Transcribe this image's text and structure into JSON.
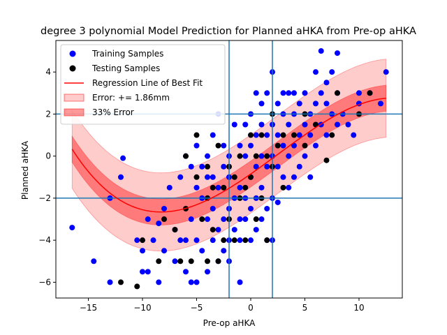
{
  "chart_data": {
    "type": "scatter",
    "title": "degree 3 polynomial Model Prediction for Planned aHKA from Pre-op aHKA",
    "xlabel": "Pre-op aHKA",
    "ylabel": "Planned aHKA",
    "xlim": [
      -18,
      14
    ],
    "ylim": [
      -6.75,
      5.5
    ],
    "xticks": [
      -15,
      -10,
      -5,
      0,
      5,
      10
    ],
    "yticks": [
      -6,
      -4,
      -2,
      0,
      2,
      4
    ],
    "grid": false,
    "legend_position": "top-left",
    "reference_lines": {
      "vertical": [
        -2,
        2
      ],
      "horizontal": [
        -2,
        2
      ],
      "color": "#1f77b4"
    },
    "series": [
      {
        "name": "Training Samples",
        "kind": "scatter",
        "color": "#0000ff",
        "points": [
          [
            -16.5,
            -3.4
          ],
          [
            -14.5,
            -5
          ],
          [
            -13,
            -6
          ],
          [
            -13,
            -2
          ],
          [
            -12,
            -1
          ],
          [
            -11.8,
            -0.1
          ],
          [
            -10.5,
            -4
          ],
          [
            -10,
            -4.5
          ],
          [
            -10,
            -5.5
          ],
          [
            -9.5,
            -5.5
          ],
          [
            -9.5,
            -3
          ],
          [
            -9,
            -4
          ],
          [
            -8.5,
            -6
          ],
          [
            -8.5,
            -3.2
          ],
          [
            -8,
            -2.5
          ],
          [
            -8,
            -4.5
          ],
          [
            -7.5,
            -1.5
          ],
          [
            -7,
            -5
          ],
          [
            -7,
            -3.5
          ],
          [
            -6.5,
            -4
          ],
          [
            -6.5,
            -1
          ],
          [
            -6,
            -5.5
          ],
          [
            -6,
            -4
          ],
          [
            -6,
            0
          ],
          [
            -5.5,
            -6
          ],
          [
            -5.5,
            -3
          ],
          [
            -5.5,
            -0.5
          ],
          [
            -5,
            -6
          ],
          [
            -5,
            -4
          ],
          [
            -5,
            -1.5
          ],
          [
            -5,
            0.5
          ],
          [
            -4.5,
            -4.5
          ],
          [
            -4.5,
            -2
          ],
          [
            -4.5,
            -0.5
          ],
          [
            -4,
            -5.5
          ],
          [
            -4,
            -3
          ],
          [
            -4,
            -1
          ],
          [
            -4,
            0
          ],
          [
            -3.5,
            -4
          ],
          [
            -3.5,
            -2.5
          ],
          [
            -3.5,
            -1
          ],
          [
            -3.5,
            1
          ],
          [
            -3,
            -5
          ],
          [
            -3,
            -3.5
          ],
          [
            -3,
            -1.5
          ],
          [
            -3,
            2
          ],
          [
            -2.5,
            -4.5
          ],
          [
            -2.5,
            -3
          ],
          [
            -2.5,
            -0.5
          ],
          [
            -2.5,
            0.5
          ],
          [
            -2,
            -5
          ],
          [
            -2,
            -4
          ],
          [
            -2,
            -2.5
          ],
          [
            -2,
            -1
          ],
          [
            -2,
            0
          ],
          [
            -1.5,
            -3.5
          ],
          [
            -1.5,
            -2
          ],
          [
            -1.5,
            1.5
          ],
          [
            -1,
            -6
          ],
          [
            -1,
            -4
          ],
          [
            -1,
            -3
          ],
          [
            -1,
            -1.5
          ],
          [
            -1,
            0.5
          ],
          [
            -0.5,
            -3
          ],
          [
            -0.5,
            -2
          ],
          [
            -0.5,
            0
          ],
          [
            -0.5,
            1.5
          ],
          [
            0,
            -4
          ],
          [
            0,
            -2.5
          ],
          [
            0,
            -1
          ],
          [
            0,
            0.5
          ],
          [
            0,
            2
          ],
          [
            0.5,
            -3.5
          ],
          [
            0.5,
            -2
          ],
          [
            0.5,
            -0.5
          ],
          [
            0.5,
            1
          ],
          [
            0.5,
            3
          ],
          [
            1,
            -3
          ],
          [
            1,
            -1.5
          ],
          [
            1,
            0
          ],
          [
            1,
            1.5
          ],
          [
            1,
            2.5
          ],
          [
            1.5,
            -4
          ],
          [
            1.5,
            -2.5
          ],
          [
            1.5,
            -0.5
          ],
          [
            1.5,
            1
          ],
          [
            1.5,
            3
          ],
          [
            2,
            -4
          ],
          [
            2,
            -2
          ],
          [
            2,
            0
          ],
          [
            2,
            1.5
          ],
          [
            2,
            4
          ],
          [
            2.5,
            -2.2
          ],
          [
            2.5,
            -0.5
          ],
          [
            2.5,
            1
          ],
          [
            2.5,
            2.5
          ],
          [
            3,
            -1
          ],
          [
            3,
            0.5
          ],
          [
            3,
            2
          ],
          [
            3,
            3
          ],
          [
            3.5,
            -1.5
          ],
          [
            3.5,
            0
          ],
          [
            3.5,
            1.5
          ],
          [
            3.5,
            3
          ],
          [
            4,
            -1
          ],
          [
            4,
            0.5
          ],
          [
            4,
            2
          ],
          [
            4,
            3
          ],
          [
            4.5,
            -0.5
          ],
          [
            4.5,
            1
          ],
          [
            4.5,
            2.5
          ],
          [
            5,
            0
          ],
          [
            5,
            1.5
          ],
          [
            5,
            3
          ],
          [
            5.5,
            -1
          ],
          [
            5.5,
            1
          ],
          [
            5.5,
            2
          ],
          [
            6,
            0.5
          ],
          [
            6,
            2.5
          ],
          [
            6,
            4
          ],
          [
            6.5,
            1.5
          ],
          [
            6.5,
            3
          ],
          [
            6.5,
            5
          ],
          [
            7,
            1
          ],
          [
            7,
            2.5
          ],
          [
            7,
            3.5
          ],
          [
            7.5,
            2
          ],
          [
            7.5,
            4
          ],
          [
            8,
            1.5
          ],
          [
            8,
            3
          ],
          [
            8,
            4.9
          ],
          [
            8.5,
            2
          ],
          [
            9,
            1.5
          ],
          [
            9.5,
            1
          ],
          [
            10,
            2.5
          ],
          [
            10,
            3
          ],
          [
            11,
            3
          ],
          [
            12,
            2.5
          ],
          [
            12.5,
            4
          ]
        ]
      },
      {
        "name": "Testing Samples",
        "kind": "scatter",
        "color": "#000000",
        "points": [
          [
            -12,
            -6
          ],
          [
            -10.5,
            -6.2
          ],
          [
            -10,
            -4
          ],
          [
            -8.5,
            -5
          ],
          [
            -8,
            -3
          ],
          [
            -7,
            -3.5
          ],
          [
            -6.5,
            -5
          ],
          [
            -6,
            -2.5
          ],
          [
            -6,
            0
          ],
          [
            -5.5,
            -5
          ],
          [
            -5,
            1
          ],
          [
            -5,
            -1
          ],
          [
            -4.5,
            -3
          ],
          [
            -4,
            -5
          ],
          [
            -4,
            -2
          ],
          [
            -4,
            -0.5
          ],
          [
            -3.5,
            -3.5
          ],
          [
            -3.5,
            -1.5
          ],
          [
            -3,
            -5
          ],
          [
            -3,
            0.5
          ],
          [
            -2.5,
            -4
          ],
          [
            -2.5,
            -1.5
          ],
          [
            -2,
            -3
          ],
          [
            -2,
            -0.5
          ],
          [
            -1.5,
            -4
          ],
          [
            -1.5,
            -1
          ],
          [
            -1,
            0
          ],
          [
            -1,
            -2
          ],
          [
            -0.5,
            -4
          ],
          [
            -0.5,
            -1.5
          ],
          [
            0,
            -1
          ],
          [
            0,
            1
          ],
          [
            0.5,
            -3
          ],
          [
            0.5,
            0
          ],
          [
            1,
            -2
          ],
          [
            1,
            1
          ],
          [
            1.5,
            -4
          ],
          [
            1.5,
            0
          ],
          [
            2,
            -0.5
          ],
          [
            2,
            2
          ],
          [
            2.5,
            0.5
          ],
          [
            3,
            -1.5
          ],
          [
            3,
            1
          ],
          [
            4,
            1
          ],
          [
            5,
            0.5
          ],
          [
            5,
            2
          ],
          [
            6,
            1.5
          ],
          [
            7,
            -0.2
          ],
          [
            7.5,
            1
          ],
          [
            8,
            3
          ],
          [
            10,
            2
          ],
          [
            11,
            3
          ]
        ]
      },
      {
        "name": "Regression Line of Best Fit",
        "kind": "line",
        "color": "#ff0000",
        "poly_coeffs": [
          -0.85,
          0.36,
          0.008,
          -0.0011
        ],
        "x_range": [
          -16.5,
          12.5
        ]
      },
      {
        "name": "Error: += 1.86mm",
        "kind": "band",
        "color": "#ff0000",
        "opacity": 0.2,
        "half_width": 1.86
      },
      {
        "name": "33% Error",
        "kind": "band",
        "color": "#ff0000",
        "opacity": 0.4,
        "half_width": 0.62
      }
    ]
  }
}
